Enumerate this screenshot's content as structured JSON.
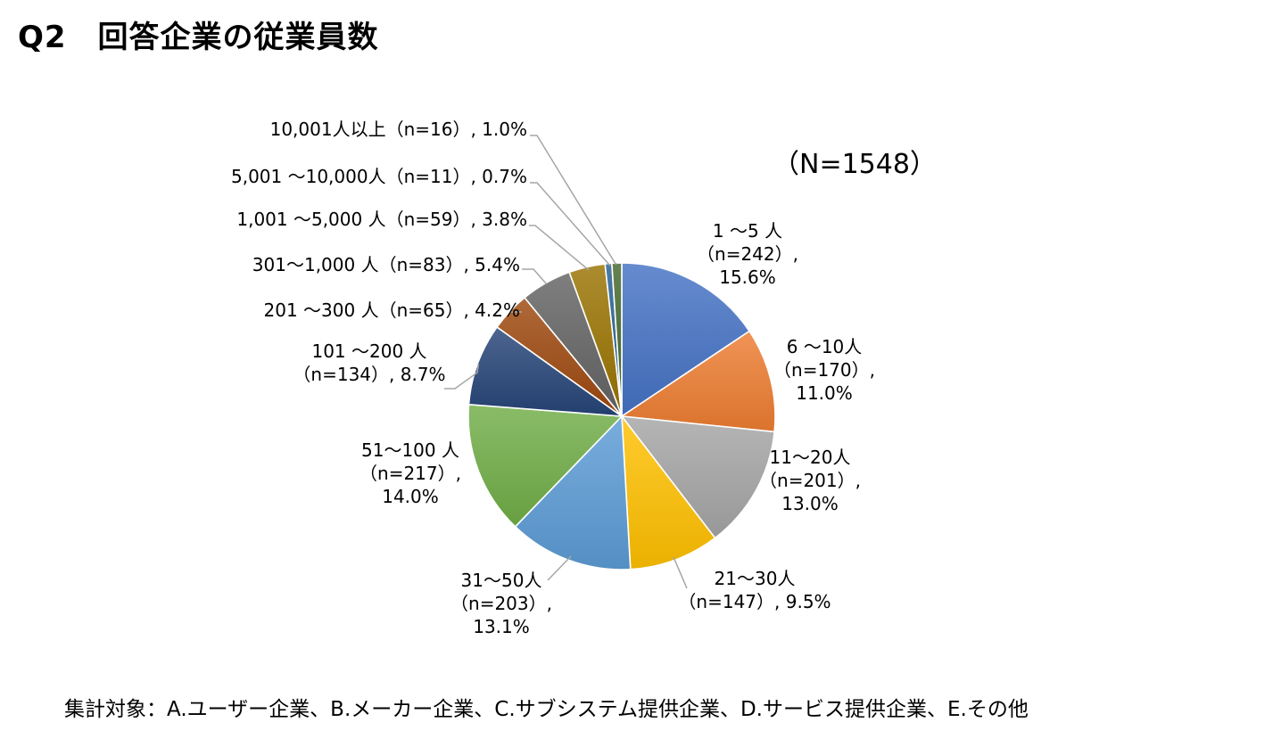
{
  "header": {
    "title": "Q2　回答企業の従業員数"
  },
  "footer": {
    "note": "集計対象：A.ユーザー企業、B.メーカー企業、C.サブシステム提供企業、D.サービス提供企業、E.その他"
  },
  "chart_data": {
    "type": "pie",
    "total_label": "（N=1548）",
    "start_angle": "12 o'clock, clockwise",
    "slices": [
      {
        "label": "1 ～5 人",
        "n": 242,
        "n_label": "（n=242）,",
        "percent": 15.6,
        "percent_label": "15.6%",
        "color": "#4472C4"
      },
      {
        "label": "6 ～10人",
        "n": 170,
        "n_label": "（n=170）,",
        "percent": 11.0,
        "percent_label": "11.0%",
        "color": "#ED7D31"
      },
      {
        "label": "11～20人",
        "n": 201,
        "n_label": "（n=201）,",
        "percent": 13.0,
        "percent_label": "13.0%",
        "color": "#A5A5A5"
      },
      {
        "label": "21～30人",
        "n": 147,
        "n_label": "（n=147）, 9.5%",
        "percent": 9.5,
        "percent_label": "",
        "color": "#FFC000"
      },
      {
        "label": "31～50人",
        "n": 203,
        "n_label": "（n=203）,",
        "percent": 13.1,
        "percent_label": "13.1%",
        "color": "#5B9BD5"
      },
      {
        "label": "51～100 人",
        "n": 217,
        "n_label": "（n=217）,",
        "percent": 14.0,
        "percent_label": "14.0%",
        "color": "#70AD47"
      },
      {
        "label": "101 ～200 人",
        "n": 134,
        "n_label": "（n=134）, 8.7%",
        "percent": 8.7,
        "percent_label": "",
        "color": "#264478"
      },
      {
        "label": "201 ～300 人（n=65）, 4.2%",
        "n": 65,
        "n_label": "",
        "percent": 4.2,
        "percent_label": "",
        "color": "#9E480E"
      },
      {
        "label": "301～1,000 人（n=83）, 5.4%",
        "n": 83,
        "n_label": "",
        "percent": 5.4,
        "percent_label": "",
        "color": "#636363"
      },
      {
        "label": "1,001 ～5,000 人（n=59）, 3.8%",
        "n": 59,
        "n_label": "",
        "percent": 3.8,
        "percent_label": "",
        "color": "#997300"
      },
      {
        "label": "5,001 ～10,000人（n=11）, 0.7%",
        "n": 11,
        "n_label": "",
        "percent": 0.7,
        "percent_label": "",
        "color": "#255E91"
      },
      {
        "label": "10,001人以上（n=16）, 1.0%",
        "n": 16,
        "n_label": "",
        "percent": 1.0,
        "percent_label": "",
        "color": "#43682B"
      }
    ]
  }
}
